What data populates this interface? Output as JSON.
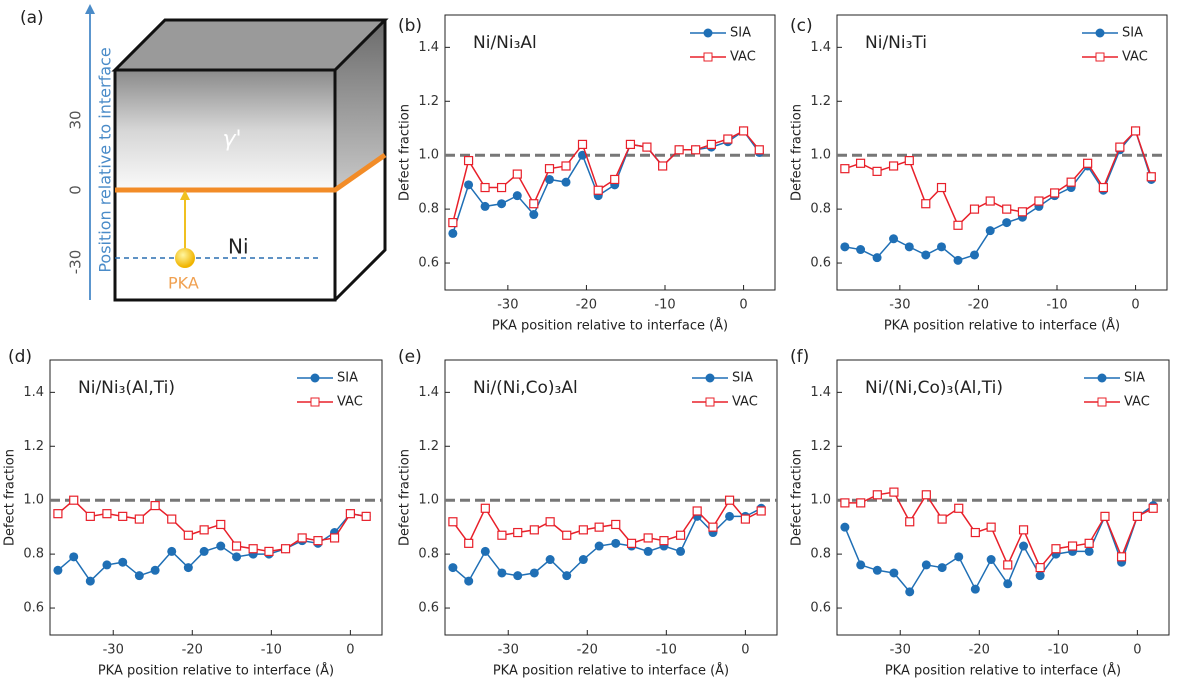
{
  "diagram": {
    "label": "(a)",
    "axis_label": "Position relative to interface",
    "ticks": [
      "30",
      "0",
      "-30"
    ],
    "phase": "γ'",
    "matrix": "Ni",
    "pka": "PKA"
  },
  "chart_data": [
    {
      "type": "line",
      "label": "(b)",
      "title": "Ni/Ni₃Al",
      "xlabel": "PKA position relative to interface (Å)",
      "ylabel": "Defect fraction",
      "x": [
        -37.0,
        -35.0,
        -32.9,
        -30.8,
        -28.8,
        -26.7,
        -24.7,
        -22.6,
        -20.5,
        -18.5,
        -16.4,
        -14.4,
        -12.3,
        -10.3,
        -8.2,
        -6.1,
        -4.1,
        -2.0,
        0.0,
        2.0
      ],
      "xlim": [
        -38,
        4
      ],
      "xticks": [
        -30,
        -20,
        -10,
        0
      ],
      "ylim": [
        0.5,
        1.52
      ],
      "yticks": [
        0.6,
        0.8,
        {
          "value": 1,
          "label": "1.0"
        },
        1.2,
        1.4
      ],
      "hline": 1,
      "legend": "upper right",
      "series": [
        {
          "name": "SIA",
          "color": "#1f6fb5",
          "marker": "circle",
          "values": [
            0.71,
            0.89,
            0.81,
            0.82,
            0.85,
            0.78,
            0.91,
            0.9,
            1.0,
            0.85,
            0.89,
            1.04,
            1.03,
            0.96,
            1.02,
            1.02,
            1.03,
            1.05,
            1.09,
            1.01
          ]
        },
        {
          "name": "VAC",
          "color": "#e8202a",
          "marker": "square",
          "values": [
            0.75,
            0.98,
            0.88,
            0.88,
            0.93,
            0.82,
            0.95,
            0.96,
            1.04,
            0.87,
            0.91,
            1.04,
            1.03,
            0.96,
            1.02,
            1.02,
            1.04,
            1.06,
            1.09,
            1.02
          ]
        }
      ]
    },
    {
      "type": "line",
      "label": "(c)",
      "title": "Ni/Ni₃Ti",
      "xlabel": "PKA position relative to interface (Å)",
      "ylabel": "Defect fraction",
      "x": [
        -37.0,
        -35.0,
        -32.9,
        -30.8,
        -28.8,
        -26.7,
        -24.7,
        -22.6,
        -20.5,
        -18.5,
        -16.4,
        -14.4,
        -12.3,
        -10.3,
        -8.2,
        -6.1,
        -4.1,
        -2.0,
        0.0,
        2.0
      ],
      "xlim": [
        -38,
        4
      ],
      "xticks": [
        -30,
        -20,
        -10,
        0
      ],
      "ylim": [
        0.5,
        1.52
      ],
      "yticks": [
        0.6,
        0.8,
        {
          "value": 1,
          "label": "1.0"
        },
        1.2,
        1.4
      ],
      "hline": 1,
      "legend": "upper right",
      "series": [
        {
          "name": "SIA",
          "color": "#1f6fb5",
          "marker": "circle",
          "values": [
            0.66,
            0.65,
            0.62,
            0.69,
            0.66,
            0.63,
            0.66,
            0.61,
            0.63,
            0.72,
            0.75,
            0.77,
            0.81,
            0.85,
            0.88,
            0.96,
            0.87,
            1.02,
            1.09,
            0.91
          ]
        },
        {
          "name": "VAC",
          "color": "#e8202a",
          "marker": "square",
          "values": [
            0.95,
            0.97,
            0.94,
            0.96,
            0.98,
            0.82,
            0.88,
            0.74,
            0.8,
            0.83,
            0.8,
            0.79,
            0.83,
            0.86,
            0.9,
            0.97,
            0.88,
            1.03,
            1.09,
            0.92
          ]
        }
      ]
    },
    {
      "type": "line",
      "label": "(d)",
      "title": "Ni/Ni₃(Al,Ti)",
      "xlabel": "PKA position relative to interface (Å)",
      "ylabel": "Defect fraction",
      "x": [
        -37.0,
        -35.0,
        -32.9,
        -30.8,
        -28.8,
        -26.7,
        -24.7,
        -22.6,
        -20.5,
        -18.5,
        -16.4,
        -14.4,
        -12.3,
        -10.3,
        -8.2,
        -6.1,
        -4.1,
        -2.0,
        0.0,
        2.0
      ],
      "xlim": [
        -38,
        4
      ],
      "xticks": [
        -30,
        -20,
        -10,
        0
      ],
      "ylim": [
        0.5,
        1.52
      ],
      "yticks": [
        0.6,
        0.8,
        {
          "value": 1,
          "label": "1.0"
        },
        1.2,
        1.4
      ],
      "hline": 1,
      "legend": "upper right",
      "series": [
        {
          "name": "SIA",
          "color": "#1f6fb5",
          "marker": "circle",
          "values": [
            0.74,
            0.79,
            0.7,
            0.76,
            0.77,
            0.72,
            0.74,
            0.81,
            0.75,
            0.81,
            0.83,
            0.79,
            0.8,
            0.8,
            0.82,
            0.85,
            0.84,
            0.88,
            0.95,
            0.94
          ]
        },
        {
          "name": "VAC",
          "color": "#e8202a",
          "marker": "square",
          "values": [
            0.95,
            1.0,
            0.94,
            0.95,
            0.94,
            0.93,
            0.98,
            0.93,
            0.87,
            0.89,
            0.91,
            0.83,
            0.82,
            0.81,
            0.82,
            0.86,
            0.85,
            0.86,
            0.95,
            0.94
          ]
        }
      ]
    },
    {
      "type": "line",
      "label": "(e)",
      "title": "Ni/(Ni,Co)₃Al",
      "xlabel": "PKA position relative to interface (Å)",
      "ylabel": "Defect fraction",
      "x": [
        -37.0,
        -35.0,
        -32.9,
        -30.8,
        -28.8,
        -26.7,
        -24.7,
        -22.6,
        -20.5,
        -18.5,
        -16.4,
        -14.4,
        -12.3,
        -10.3,
        -8.2,
        -6.1,
        -4.1,
        -2.0,
        0.0,
        2.0
      ],
      "xlim": [
        -38,
        4
      ],
      "xticks": [
        -30,
        -20,
        -10,
        0
      ],
      "ylim": [
        0.5,
        1.52
      ],
      "yticks": [
        0.6,
        0.8,
        {
          "value": 1,
          "label": "1.0"
        },
        1.2,
        1.4
      ],
      "hline": 1,
      "legend": "upper right",
      "series": [
        {
          "name": "SIA",
          "color": "#1f6fb5",
          "marker": "circle",
          "values": [
            0.75,
            0.7,
            0.81,
            0.73,
            0.72,
            0.73,
            0.78,
            0.72,
            0.78,
            0.83,
            0.84,
            0.83,
            0.81,
            0.83,
            0.81,
            0.94,
            0.88,
            0.94,
            0.94,
            0.97
          ]
        },
        {
          "name": "VAC",
          "color": "#e8202a",
          "marker": "square",
          "values": [
            0.92,
            0.84,
            0.97,
            0.87,
            0.88,
            0.89,
            0.92,
            0.87,
            0.89,
            0.9,
            0.91,
            0.84,
            0.86,
            0.85,
            0.87,
            0.96,
            0.9,
            1.0,
            0.93,
            0.96
          ]
        }
      ]
    },
    {
      "type": "line",
      "label": "(f)",
      "title": "Ni/(Ni,Co)₃(Al,Ti)",
      "xlabel": "PKA position relative to interface (Å)",
      "ylabel": "Defect fraction",
      "x": [
        -37.0,
        -35.0,
        -32.9,
        -30.8,
        -28.8,
        -26.7,
        -24.7,
        -22.6,
        -20.5,
        -18.5,
        -16.4,
        -14.4,
        -12.3,
        -10.3,
        -8.2,
        -6.1,
        -4.1,
        -2.0,
        0.0,
        2.0
      ],
      "xlim": [
        -38,
        4
      ],
      "xticks": [
        -30,
        -20,
        -10,
        0
      ],
      "ylim": [
        0.5,
        1.52
      ],
      "yticks": [
        0.6,
        0.8,
        {
          "value": 1,
          "label": "1.0"
        },
        1.2,
        1.4
      ],
      "hline": 1,
      "legend": "upper right",
      "series": [
        {
          "name": "SIA",
          "color": "#1f6fb5",
          "marker": "circle",
          "values": [
            0.9,
            0.76,
            0.74,
            0.73,
            0.66,
            0.76,
            0.75,
            0.79,
            0.67,
            0.78,
            0.69,
            0.83,
            0.72,
            0.8,
            0.81,
            0.81,
            0.94,
            0.77,
            0.94,
            0.98
          ]
        },
        {
          "name": "VAC",
          "color": "#e8202a",
          "marker": "square",
          "values": [
            0.99,
            0.99,
            1.02,
            1.03,
            0.92,
            1.02,
            0.93,
            0.97,
            0.88,
            0.9,
            0.76,
            0.89,
            0.75,
            0.82,
            0.83,
            0.84,
            0.94,
            0.79,
            0.94,
            0.97
          ]
        }
      ]
    }
  ]
}
